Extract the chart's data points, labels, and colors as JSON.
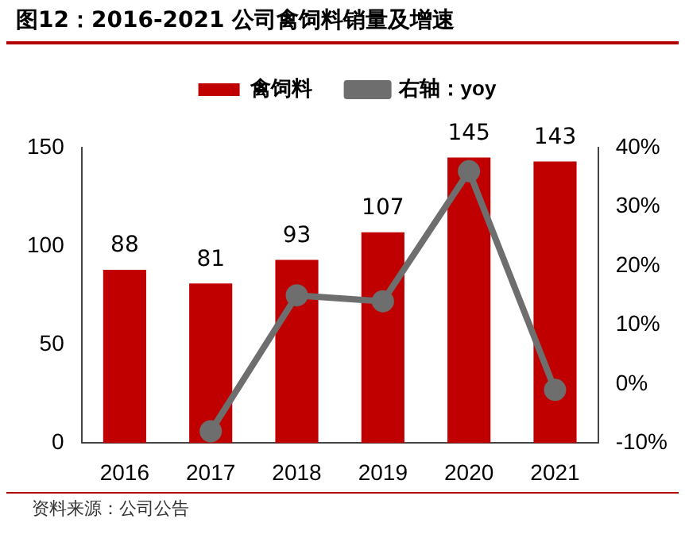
{
  "chart_data": {
    "type": "bar",
    "title": "图12：2016-2021 公司禽饲料销量及增速",
    "categories": [
      "2016",
      "2017",
      "2018",
      "2019",
      "2020",
      "2021"
    ],
    "series": [
      {
        "name": "禽饲料",
        "color": "#c00000",
        "values": [
          88,
          81,
          93,
          107,
          145,
          143
        ],
        "value_labels": [
          "88",
          "81",
          "93",
          "107",
          "145",
          "143"
        ]
      },
      {
        "name": "右轴：yoy",
        "type": "line",
        "axis": "y2",
        "color": "#6e6e6e",
        "values": [
          null,
          -8,
          15,
          14,
          36,
          -1
        ],
        "marker": "circle"
      }
    ],
    "ylim": [
      0,
      150
    ],
    "yticks": [
      0,
      50,
      100,
      150
    ],
    "y2lim": [
      -10,
      40
    ],
    "y2ticks": [
      {
        "value": -10,
        "label": "-10%"
      },
      {
        "value": 0,
        "label": "0%"
      },
      {
        "value": 10,
        "label": "10%"
      },
      {
        "value": 20,
        "label": "20%"
      },
      {
        "value": 30,
        "label": "30%"
      },
      {
        "value": 40,
        "label": "40%"
      }
    ],
    "legend": "top",
    "grid": false,
    "annotations": [
      "资料来源：公司公告"
    ]
  }
}
